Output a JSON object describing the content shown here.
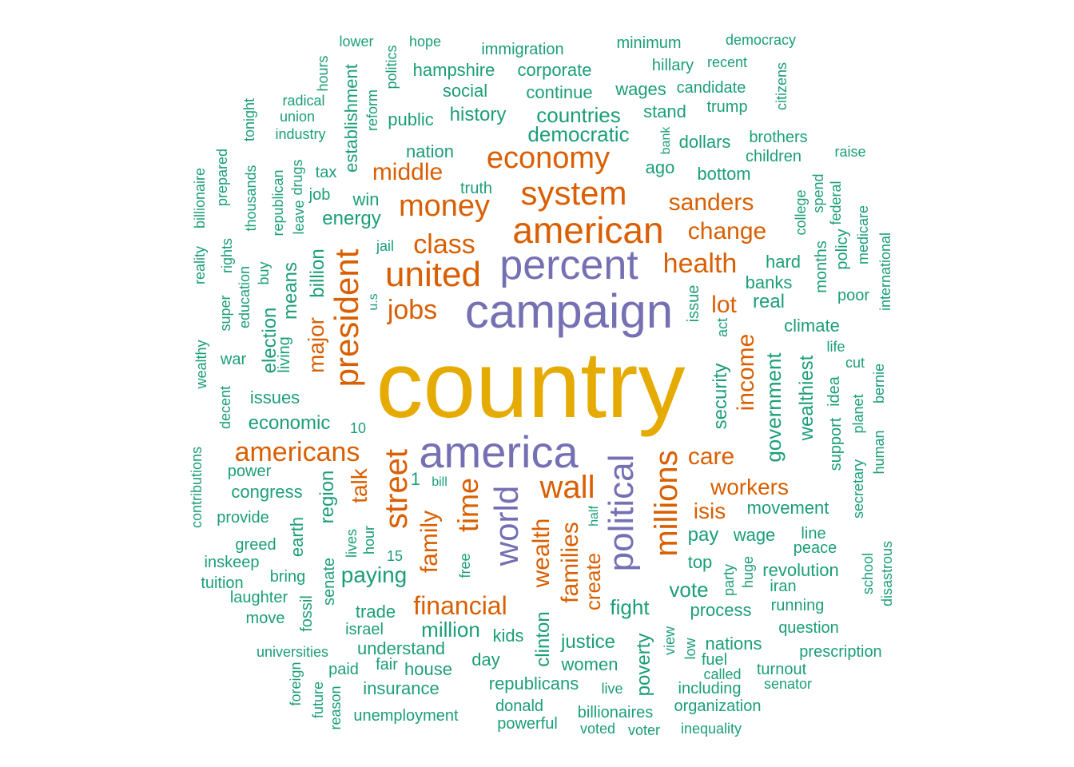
{
  "colors": {
    "gold": "#e6ab02",
    "purple": "#7570b3",
    "orange": "#d95f02",
    "green": "#1b9e77"
  },
  "words": [
    "country",
    "campaign",
    "america",
    "percent",
    "political",
    "american",
    "united",
    "system",
    "president",
    "economy",
    "street",
    "money",
    "wall",
    "millions",
    "world",
    "time",
    "class",
    "health",
    "jobs",
    "americans",
    "sanders",
    "financial",
    "income",
    "care",
    "change",
    "family",
    "middle",
    "lot",
    "wealth",
    "families",
    "workers",
    "isis",
    "create",
    "talk",
    "major",
    "democratic",
    "countries",
    "history",
    "hampshire",
    "corporate",
    "immigration",
    "social",
    "continue",
    "public",
    "wages",
    "candidate",
    "stand",
    "nation",
    "ago",
    "dollars",
    "bottom",
    "tax",
    "win",
    "energy",
    "job",
    "truth",
    "jail",
    "billion",
    "means",
    "election",
    "living",
    "war",
    "issues",
    "economic",
    "power",
    "congress",
    "provide",
    "greed",
    "inskeep",
    "tuition",
    "bring",
    "laughter",
    "move",
    "fossil",
    "senate",
    "region",
    "earth",
    "paying",
    "trade",
    "israel",
    "million",
    "understand",
    "kids",
    "clinton",
    "women",
    "justice",
    "poverty",
    "fight",
    "vote",
    "process",
    "top",
    "pay",
    "wage",
    "movement",
    "security",
    "government",
    "wealthiest",
    "climate",
    "real",
    "banks",
    "hard",
    "months",
    "policy",
    "medicare",
    "international",
    "poor",
    "support",
    "idea",
    "life",
    "cut",
    "planet",
    "bernie",
    "human",
    "secretary",
    "line",
    "peace",
    "revolution",
    "iran",
    "running",
    "question",
    "prescription",
    "school",
    "disastrous",
    "turnout",
    "senator",
    "called",
    "fuel",
    "nations",
    "view",
    "low",
    "including",
    "organization",
    "inequality",
    "voted",
    "voter",
    "billionaires",
    "live",
    "powerful",
    "donald",
    "republicans",
    "day",
    "house",
    "insurance",
    "unemployment",
    "paid",
    "fair",
    "universities",
    "foreign",
    "future",
    "reason",
    "lives",
    "hour",
    "free",
    "half",
    "bill",
    "democracy",
    "minimum",
    "hillary",
    "recent",
    "trump",
    "citizens",
    "brothers",
    "children",
    "raise",
    "spend",
    "college",
    "federal",
    "lower",
    "hope",
    "hours",
    "politics",
    "establishment",
    "reform",
    "radical",
    "union",
    "industry",
    "tonight",
    "thousands",
    "prepared",
    "billionaire",
    "reality",
    "rights",
    "super",
    "buy",
    "education",
    "republican",
    "drugs",
    "leave",
    "wealthy",
    "decent",
    "contributions",
    "u.s",
    "issue",
    "act",
    "bank",
    "1",
    "10",
    "15",
    "party",
    "huge"
  ]
}
